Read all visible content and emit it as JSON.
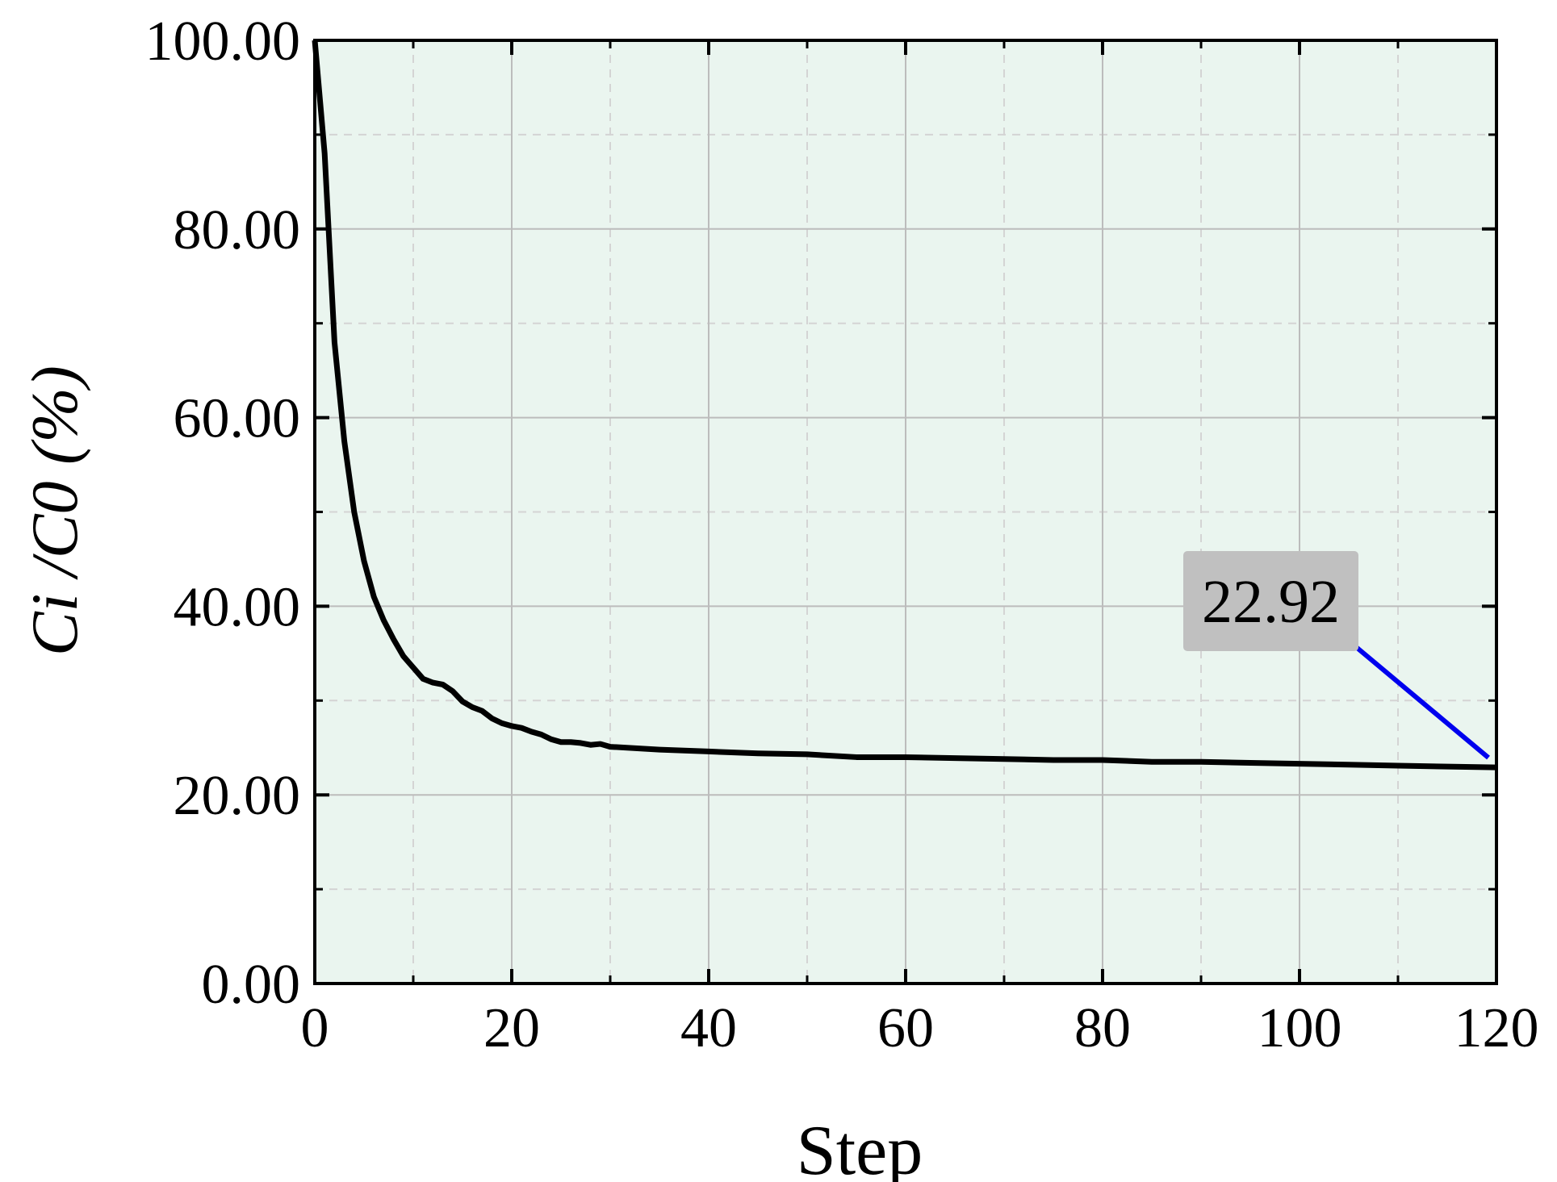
{
  "chart_data": {
    "type": "line",
    "x_label": "Step",
    "y_label": "Ci /C0 (%)",
    "x": [
      0,
      1,
      2,
      3,
      4,
      5,
      6,
      7,
      8,
      9,
      10,
      11,
      12,
      13,
      14,
      15,
      16,
      17,
      18,
      19,
      20,
      21,
      22,
      23,
      24,
      25,
      26,
      27,
      28,
      29,
      30,
      35,
      40,
      45,
      50,
      55,
      60,
      65,
      70,
      75,
      80,
      85,
      90,
      95,
      100,
      105,
      110,
      115,
      120
    ],
    "series": [
      {
        "color": "#000000",
        "values": [
          100,
          88,
          68,
          57.5,
          50,
          44.8,
          41,
          38.5,
          36.5,
          34.7,
          33.5,
          32.3,
          31.9,
          31.7,
          31,
          29.9,
          29.3,
          28.9,
          28.1,
          27.6,
          27.3,
          27.1,
          26.7,
          26.4,
          25.9,
          25.6,
          25.6,
          25.5,
          25.3,
          25.4,
          25.1,
          24.8,
          24.6,
          24.4,
          24.3,
          24.0,
          24.0,
          23.9,
          23.8,
          23.7,
          23.7,
          23.5,
          23.5,
          23.4,
          23.3,
          23.2,
          23.1,
          23.0,
          22.92
        ]
      }
    ],
    "xlim": [
      0,
      120
    ],
    "ylim": [
      0,
      100
    ],
    "xticks": [
      0,
      20,
      40,
      60,
      80,
      100,
      120
    ],
    "yticks": [
      {
        "value": 0,
        "label": "0.00"
      },
      {
        "value": 20,
        "label": "20.00"
      },
      {
        "value": 40,
        "label": "40.00"
      },
      {
        "value": 60,
        "label": "60.00"
      },
      {
        "value": 80,
        "label": "80.00"
      },
      {
        "value": 100,
        "label": "100.00"
      }
    ],
    "xminorticks": [
      10,
      30,
      50,
      70,
      90,
      110
    ],
    "yminorticks": [
      10,
      30,
      50,
      70,
      90
    ],
    "grid": true,
    "background": "#eaf5ef",
    "annotation": {
      "text": "22.92",
      "x": 120,
      "y": 22.92,
      "color": "#0000ee",
      "box_color": "#c0c0c0"
    }
  }
}
